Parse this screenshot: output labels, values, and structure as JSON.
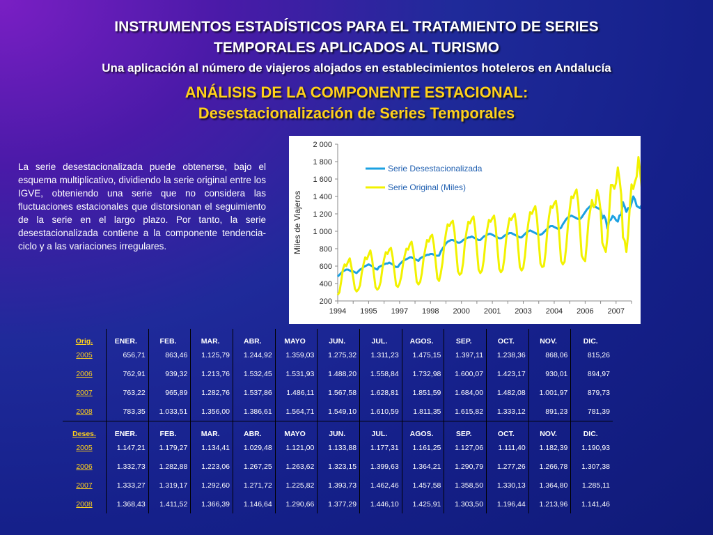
{
  "title_line1": "INSTRUMENTOS ESTADÍSTICOS PARA EL TRATAMIENTO DE SERIES",
  "title_line2": "TEMPORALES APLICADOS AL TURISMO",
  "subtitle": "Una aplicación al número de viajeros alojados en establecimientos hoteleros en Andalucía",
  "section_line1": "ANÁLISIS DE LA COMPONENTE ESTACIONAL:",
  "section_line2": "Desestacionalización de Series Temporales",
  "description": "La serie desestacionalizada puede obtenerse, bajo el esquema multiplicativo, dividiendo la serie original entre los IGVE, obteniendo una serie que no considera las fluctuaciones  estacionales que distorsionan el seguimiento de la serie en el largo plazo. Por tanto, la serie desestacionalizada contiene a la componente tendencia-ciclo y a las variaciones irregulares.",
  "colors": {
    "desestacionalizada": "#1ba1e2",
    "original": "#f2f200",
    "title": "#ffd11a"
  },
  "chart_data": {
    "type": "line",
    "ylabel": "Miles de Viajeros",
    "xlabel": "",
    "ylim": [
      200,
      2000
    ],
    "yticks": [
      "200",
      "400",
      "600",
      "800",
      "1 000",
      "1 200",
      "1 400",
      "1 600",
      "1 800",
      "2 000"
    ],
    "xticks": [
      "1994",
      "1995",
      "1997",
      "1998",
      "2000",
      "2001",
      "2003",
      "2004",
      "2006",
      "2007"
    ],
    "x_start_year": 1994,
    "legend_position": "top-left",
    "grid": false,
    "series": [
      {
        "name": "Serie Desestacionalizada",
        "color": "#1ba1e2",
        "values": [
          480,
          500,
          520,
          540,
          550,
          560,
          560,
          550,
          540,
          540,
          530,
          520,
          540,
          560,
          570,
          590,
          600,
          610,
          620,
          610,
          600,
          580,
          570,
          560,
          590,
          600,
          610,
          620,
          630,
          630,
          640,
          630,
          620,
          600,
          590,
          590,
          620,
          640,
          660,
          670,
          680,
          690,
          700,
          700,
          690,
          680,
          670,
          660,
          690,
          700,
          710,
          720,
          730,
          730,
          740,
          740,
          730,
          720,
          720,
          720,
          770,
          800,
          830,
          860,
          880,
          890,
          900,
          900,
          890,
          880,
          870,
          870,
          880,
          900,
          910,
          920,
          930,
          930,
          940,
          930,
          920,
          910,
          900,
          900,
          920,
          940,
          950,
          960,
          970,
          970,
          960,
          950,
          940,
          930,
          920,
          920,
          930,
          950,
          960,
          970,
          980,
          980,
          970,
          960,
          950,
          940,
          930,
          930,
          950,
          970,
          990,
          1000,
          1010,
          1000,
          990,
          980,
          970,
          960,
          960,
          970,
          990,
          1010,
          1030,
          1050,
          1060,
          1060,
          1050,
          1040,
          1030,
          1030,
          1040,
          1080,
          1110,
          1140,
          1160,
          1170,
          1180,
          1170,
          1160,
          1150,
          1140,
          1140,
          1160,
          1190,
          1220,
          1250,
          1270,
          1290,
          1300,
          1290,
          1280,
          1270,
          1260,
          1250,
          1147,
          1179,
          1134,
          1029,
          1121,
          1134,
          1177,
          1161,
          1127,
          1111,
          1182,
          1191,
          1333,
          1283,
          1223,
          1267,
          1264,
          1323,
          1400,
          1364,
          1291,
          1277,
          1267,
          1307,
          1333,
          1319,
          1293,
          1272,
          1226,
          1394,
          1462,
          1458,
          1359,
          1330,
          1365,
          1285,
          1368,
          1412,
          1366,
          1147,
          1291,
          1377,
          1446,
          1426,
          1304,
          1196,
          1214,
          1141
        ]
      },
      {
        "name": "Serie Original (Miles)",
        "color": "#f2f200",
        "values": [
          270,
          300,
          420,
          560,
          620,
          600,
          650,
          690,
          590,
          470,
          340,
          310,
          330,
          380,
          520,
          620,
          700,
          680,
          730,
          780,
          680,
          520,
          360,
          330,
          350,
          420,
          570,
          680,
          760,
          740,
          790,
          810,
          700,
          540,
          380,
          360,
          400,
          480,
          620,
          720,
          800,
          790,
          850,
          880,
          770,
          600,
          420,
          390,
          420,
          520,
          690,
          800,
          900,
          880,
          940,
          960,
          840,
          650,
          460,
          430,
          520,
          640,
          840,
          980,
          1080,
          1060,
          1100,
          1120,
          990,
          760,
          540,
          500,
          520,
          640,
          860,
          1000,
          1110,
          1090,
          1140,
          1170,
          1030,
          790,
          560,
          520,
          550,
          670,
          880,
          1020,
          1130,
          1110,
          1150,
          1180,
          1040,
          800,
          570,
          530,
          560,
          690,
          900,
          1040,
          1150,
          1130,
          1170,
          1200,
          1060,
          820,
          590,
          550,
          580,
          720,
          950,
          1100,
          1220,
          1200,
          1250,
          1290,
          1140,
          880,
          630,
          590,
          600,
          760,
          1010,
          1170,
          1290,
          1270,
          1320,
          1350,
          1200,
          930,
          660,
          620,
          650,
          820,
          1070,
          1250,
          1400,
          1380,
          1440,
          1480,
          1320,
          1020,
          720,
          680,
          657,
          863,
          1126,
          1245,
          1359,
          1275,
          1311,
          1475,
          1397,
          1238,
          868,
          815,
          763,
          939,
          1214,
          1532,
          1532,
          1488,
          1559,
          1733,
          1600,
          1423,
          930,
          895,
          763,
          966,
          1283,
          1538,
          1486,
          1568,
          1629,
          1852,
          1684,
          1482,
          1002,
          880,
          783,
          1034,
          1356,
          1387,
          1565,
          1549,
          1611,
          1811,
          1616,
          1333,
          891,
          781
        ]
      }
    ]
  },
  "table": {
    "orig_label": "Orig.",
    "deses_label": "Deses.",
    "months": [
      "ENER.",
      "FEB.",
      "MAR.",
      "ABR.",
      "MAYO",
      "JUN.",
      "JUL.",
      "AGOS.",
      "SEP.",
      "OCT.",
      "NOV.",
      "DIC."
    ],
    "orig_rows": [
      {
        "year": "2005",
        "values": [
          "656,71",
          "863,46",
          "1.125,79",
          "1.244,92",
          "1.359,03",
          "1.275,32",
          "1.311,23",
          "1.475,15",
          "1.397,11",
          "1.238,36",
          "868,06",
          "815,26"
        ]
      },
      {
        "year": "2006",
        "values": [
          "762,91",
          "939,32",
          "1.213,76",
          "1.532,45",
          "1.531,93",
          "1.488,20",
          "1.558,84",
          "1.732,98",
          "1.600,07",
          "1.423,17",
          "930,01",
          "894,97"
        ]
      },
      {
        "year": "2007",
        "values": [
          "763,22",
          "965,89",
          "1.282,76",
          "1.537,86",
          "1.486,11",
          "1.567,58",
          "1.628,81",
          "1.851,59",
          "1.684,00",
          "1.482,08",
          "1.001,97",
          "879,73"
        ]
      },
      {
        "year": "2008",
        "values": [
          "783,35",
          "1.033,51",
          "1.356,00",
          "1.386,61",
          "1.564,71",
          "1.549,10",
          "1.610,59",
          "1.811,35",
          "1.615,82",
          "1.333,12",
          "891,23",
          "781,39"
        ]
      }
    ],
    "deses_rows": [
      {
        "year": "2005",
        "values": [
          "1.147,21",
          "1.179,27",
          "1.134,41",
          "1.029,48",
          "1.121,00",
          "1.133,88",
          "1.177,31",
          "1.161,25",
          "1.127,06",
          "1.111,40",
          "1.182,39",
          "1.190,93"
        ]
      },
      {
        "year": "2006",
        "values": [
          "1.332,73",
          "1.282,88",
          "1.223,06",
          "1.267,25",
          "1.263,62",
          "1.323,15",
          "1.399,63",
          "1.364,21",
          "1.290,79",
          "1.277,26",
          "1.266,78",
          "1.307,38"
        ]
      },
      {
        "year": "2007",
        "values": [
          "1.333,27",
          "1.319,17",
          "1.292,60",
          "1.271,72",
          "1.225,82",
          "1.393,73",
          "1.462,46",
          "1.457,58",
          "1.358,50",
          "1.330,13",
          "1.364,80",
          "1.285,11"
        ]
      },
      {
        "year": "2008",
        "values": [
          "1.368,43",
          "1.411,52",
          "1.366,39",
          "1.146,64",
          "1.290,66",
          "1.377,29",
          "1.446,10",
          "1.425,91",
          "1.303,50",
          "1.196,44",
          "1.213,96",
          "1.141,46"
        ]
      }
    ]
  }
}
